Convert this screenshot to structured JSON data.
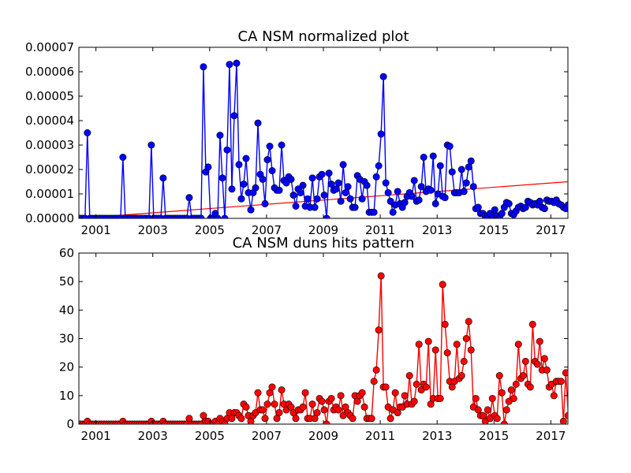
{
  "chart_data": [
    {
      "type": "line",
      "title": "CA NSM normalized plot",
      "xlabel": "",
      "ylabel": "",
      "xlim": [
        2000.4,
        2017.6
      ],
      "ylim": [
        0,
        7e-05
      ],
      "grid": false,
      "x_ticks": [
        2001,
        2003,
        2005,
        2007,
        2009,
        2011,
        2013,
        2015,
        2017
      ],
      "x_tick_labels": [
        "2001",
        "2003",
        "2005",
        "2007",
        "2009",
        "2011",
        "2013",
        "2015",
        "2017"
      ],
      "y_ticks": [
        0,
        1e-05,
        2e-05,
        3e-05,
        4e-05,
        5e-05,
        6e-05,
        7e-05
      ],
      "y_tick_labels": [
        "0.00000",
        "0.00001",
        "0.00002",
        "0.00003",
        "0.00004",
        "0.00005",
        "0.00006",
        "0.00007"
      ],
      "series": [
        {
          "color": "#0000ff",
          "marker": "circle",
          "x_start": 2000.45,
          "x_step": 0.0833,
          "values": [
            0,
            0,
            0,
            3.5e-05,
            0,
            0,
            0,
            0,
            0,
            0,
            0,
            0,
            0,
            0,
            0,
            0,
            0,
            0,
            2.5e-05,
            0,
            0,
            0,
            0,
            0,
            0,
            0,
            0,
            0,
            0,
            0,
            3e-05,
            0,
            0,
            0,
            0,
            1.65e-05,
            0,
            0,
            0,
            0,
            0,
            0,
            0,
            0,
            0,
            0,
            8.5e-06,
            0,
            0,
            0,
            0,
            0,
            6.2e-05,
            1.9e-05,
            2.1e-05,
            0,
            0,
            2e-06,
            0,
            3.4e-05,
            1.65e-05,
            0,
            2.8e-05,
            6.3e-05,
            1.2e-05,
            4.2e-05,
            6.35e-05,
            2.2e-05,
            8e-06,
            1.4e-05,
            2.45e-05,
            1.05e-05,
            3.5e-06,
            1.05e-05,
            1.25e-05,
            3.9e-05,
            1.8e-05,
            1.6e-05,
            6e-06,
            2.4e-05,
            2.95e-05,
            1.95e-05,
            1.25e-05,
            1.15e-05,
            1.15e-05,
            3e-05,
            1.55e-05,
            1.45e-05,
            1.7e-05,
            1.6e-05,
            9.5e-06,
            5e-06,
            1.2e-05,
            1.05e-05,
            1.35e-05,
            5e-06,
            8e-06,
            4.5e-06,
            1.65e-05,
            4.5e-06,
            8e-06,
            1.7e-05,
            1.8e-05,
            9.5e-06,
            0,
            1.85e-05,
            1.4e-05,
            1.15e-05,
            1.2e-05,
            1.45e-05,
            7e-06,
            2.2e-05,
            1.05e-05,
            1.3e-05,
            8e-06,
            4.5e-06,
            4.5e-06,
            1.75e-05,
            1.6e-05,
            8e-06,
            1.5e-05,
            1.35e-05,
            2.5e-06,
            2.5e-06,
            2.5e-06,
            1.7e-05,
            2.15e-05,
            3.45e-05,
            5.8e-05,
            1.45e-05,
            1.05e-05,
            7e-06,
            2.5e-06,
            5.5e-06,
            1.1e-05,
            6e-06,
            4.5e-06,
            6.5e-06,
            9e-06,
            1.05e-05,
            9e-06,
            1.55e-05,
            7e-06,
            7.5e-06,
            1.3e-05,
            2.5e-05,
            1.1e-05,
            1.2e-05,
            1.15e-05,
            2.55e-05,
            6e-06,
            1e-05,
            2.15e-05,
            9e-06,
            8.5e-06,
            3e-05,
            2.95e-05,
            1.9e-05,
            1.05e-05,
            1.05e-05,
            1.05e-05,
            2e-05,
            1.1e-05,
            1.45e-05,
            2.1e-05,
            2.35e-05,
            1.3e-05,
            4e-06,
            4.5e-06,
            2e-06,
            2e-06,
            1e-06,
            1e-06,
            2e-06,
            1e-06,
            3.5e-06,
            1e-06,
            5e-07,
            2e-06,
            4.5e-06,
            6.5e-06,
            6e-06,
            2e-06,
            1.5e-06,
            3e-06,
            4.5e-06,
            5e-06,
            4e-06,
            4.5e-06,
            7e-06,
            6.5e-06,
            5.5e-06,
            6e-06,
            5.5e-06,
            7e-06,
            4.5e-06,
            4e-06,
            7.5e-06,
            7e-06,
            7e-06,
            6.5e-06,
            7.5e-06,
            6e-06,
            5.5e-06,
            4.5e-06,
            4e-06,
            5.5e-06,
            4e-06,
            1e-06,
            7.5e-06,
            2e-06
          ]
        }
      ],
      "trend_line": {
        "color": "#ff0000",
        "x": [
          2000.4,
          2017.6
        ],
        "y": [
          0,
          1.5e-05
        ]
      }
    },
    {
      "type": "line",
      "title": "CA NSM duns hits pattern",
      "xlabel": "",
      "ylabel": "",
      "xlim": [
        2000.4,
        2017.6
      ],
      "ylim": [
        0,
        60
      ],
      "grid": false,
      "x_ticks": [
        2001,
        2003,
        2005,
        2007,
        2009,
        2011,
        2013,
        2015,
        2017
      ],
      "x_tick_labels": [
        "2001",
        "2003",
        "2005",
        "2007",
        "2009",
        "2011",
        "2013",
        "2015",
        "2017"
      ],
      "y_ticks": [
        0,
        10,
        20,
        30,
        40,
        50,
        60
      ],
      "y_tick_labels": [
        "0",
        "10",
        "20",
        "30",
        "40",
        "50",
        "60"
      ],
      "series": [
        {
          "color": "#ff0000",
          "marker": "circle",
          "x_start": 2000.45,
          "x_step": 0.0833,
          "values": [
            0,
            0,
            0,
            1,
            0,
            0,
            0,
            0,
            0,
            0,
            0,
            0,
            0,
            0,
            0,
            0,
            0,
            0,
            1,
            0,
            0,
            0,
            0,
            0,
            0,
            0,
            0,
            0,
            0,
            0,
            1,
            0,
            0,
            0,
            0,
            1,
            0,
            0,
            0,
            0,
            0,
            0,
            0,
            0,
            0,
            0,
            2,
            0,
            0,
            0,
            0,
            0,
            3,
            1,
            1,
            0,
            0,
            1,
            0,
            2,
            1,
            0,
            2,
            4,
            2,
            4,
            4,
            3,
            2,
            7,
            6,
            3,
            1,
            3,
            4,
            11,
            5,
            5,
            2,
            7,
            11,
            13,
            7,
            2,
            4,
            12,
            7,
            5,
            7,
            6,
            4,
            2,
            5,
            5,
            6,
            11,
            2,
            2,
            7,
            2,
            4,
            9,
            8,
            5,
            0,
            8,
            9,
            5,
            6,
            5,
            10,
            3,
            6,
            4,
            3,
            2,
            10,
            8,
            10,
            11,
            6,
            2,
            2,
            2,
            15,
            19,
            33,
            52,
            13,
            13,
            6,
            2,
            5,
            11,
            4,
            6,
            6,
            10,
            7,
            17,
            7,
            8,
            14,
            28,
            12,
            14,
            13,
            29,
            7,
            9,
            26,
            9,
            9,
            49,
            35,
            25,
            15,
            13,
            15,
            28,
            16,
            17,
            22,
            30,
            36,
            26,
            6,
            9,
            5,
            3,
            3,
            1,
            5,
            2,
            9,
            3,
            2,
            17,
            11,
            0,
            5,
            8,
            12,
            9,
            14,
            28,
            16,
            17,
            22,
            14,
            13,
            35,
            22,
            21,
            29,
            19,
            23,
            19,
            13,
            14,
            10,
            15,
            15,
            15,
            1,
            18,
            3
          ]
        }
      ]
    }
  ]
}
